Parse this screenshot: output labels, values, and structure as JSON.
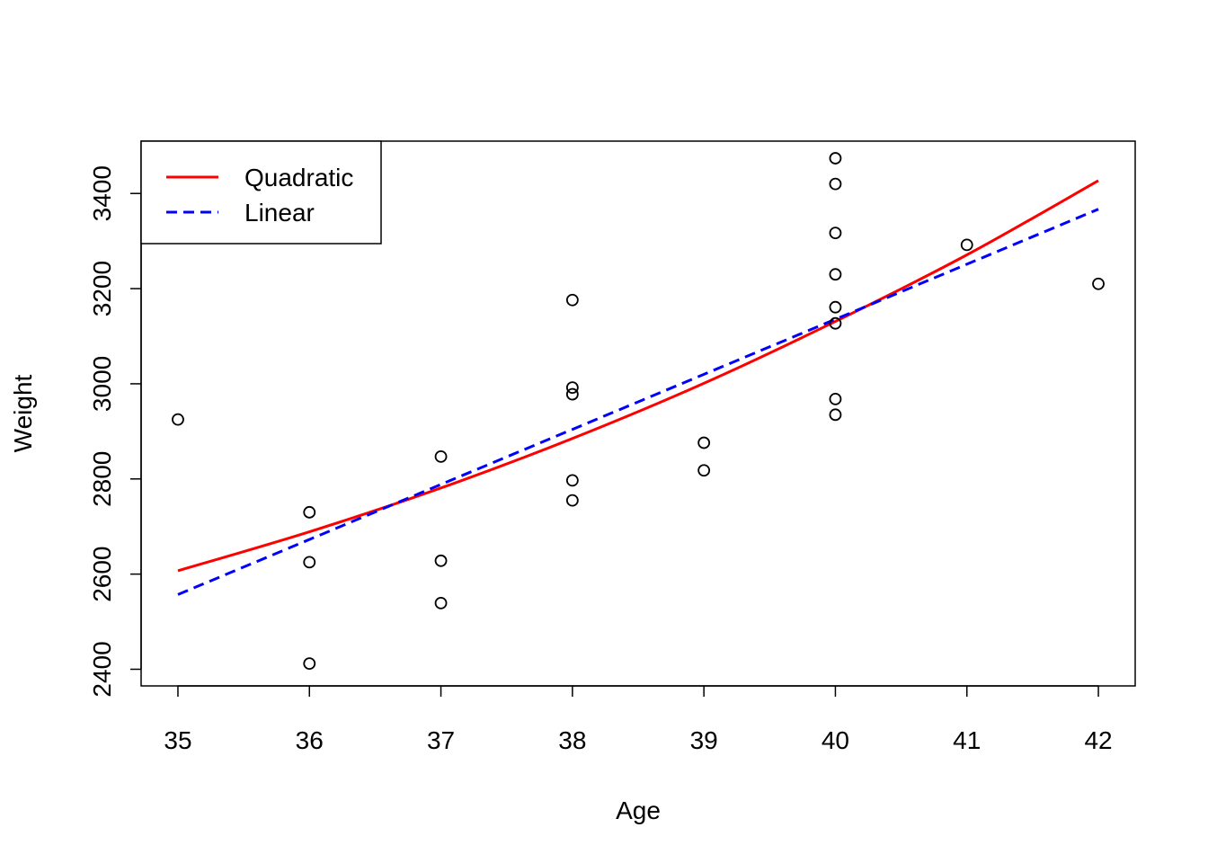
{
  "chart_data": {
    "type": "scatter",
    "xlabel": "Age",
    "ylabel": "Weight",
    "xlim": [
      34.72,
      42.28
    ],
    "ylim": [
      2365,
      3510
    ],
    "x_ticks": [
      35,
      36,
      37,
      38,
      39,
      40,
      41,
      42
    ],
    "y_ticks": [
      2400,
      2600,
      2800,
      3000,
      3200,
      3400
    ],
    "grid": false,
    "legend_position": "top-left",
    "points": [
      {
        "x": 35,
        "y": 2925
      },
      {
        "x": 36,
        "y": 2730
      },
      {
        "x": 36,
        "y": 2625
      },
      {
        "x": 36,
        "y": 2412
      },
      {
        "x": 37,
        "y": 2847
      },
      {
        "x": 37,
        "y": 2628
      },
      {
        "x": 37,
        "y": 2539
      },
      {
        "x": 38,
        "y": 3176
      },
      {
        "x": 38,
        "y": 2992
      },
      {
        "x": 38,
        "y": 2978
      },
      {
        "x": 38,
        "y": 2797
      },
      {
        "x": 38,
        "y": 2755
      },
      {
        "x": 39,
        "y": 2876
      },
      {
        "x": 39,
        "y": 2818
      },
      {
        "x": 40,
        "y": 3474
      },
      {
        "x": 40,
        "y": 3420
      },
      {
        "x": 40,
        "y": 3317
      },
      {
        "x": 40,
        "y": 3230
      },
      {
        "x": 40,
        "y": 3161
      },
      {
        "x": 40,
        "y": 3127
      },
      {
        "x": 40,
        "y": 2968
      },
      {
        "x": 40,
        "y": 2935
      },
      {
        "x": 41,
        "y": 3292
      },
      {
        "x": 42,
        "y": 3210
      }
    ],
    "series": [
      {
        "name": "Quadratic",
        "color": "#ff0000",
        "style": "solid",
        "x": [
          35,
          36,
          37,
          38,
          39,
          40,
          41,
          42
        ],
        "y": [
          2607,
          2689,
          2781,
          2885,
          3001,
          3131,
          3271,
          3427
        ]
      },
      {
        "name": "Linear",
        "color": "#0000ff",
        "style": "dashed",
        "x": [
          35,
          42
        ],
        "y": [
          2557,
          3367
        ]
      }
    ]
  }
}
